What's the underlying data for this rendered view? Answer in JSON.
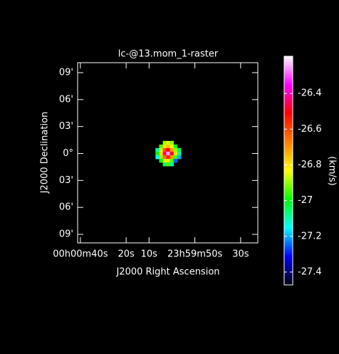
{
  "chart_data": {
    "type": "heatmap",
    "title": "lc-@13.mom_1-raster",
    "x_label": "J2000 Right Ascension",
    "y_label": "J2000 Declination",
    "colorbar_label": "(km/s)",
    "xlim": [
      41.2,
      -37.5
    ],
    "xticks": [
      {
        "value": 40,
        "label": "00h00m40s"
      },
      {
        "value": 20,
        "label": "20s"
      },
      {
        "value": 10,
        "label": "10s"
      },
      {
        "value": -10,
        "label": "23h59m50s"
      },
      {
        "value": -30,
        "label": "30s"
      }
    ],
    "ylim": [
      -9.95,
      10.11
    ],
    "yticks": [
      {
        "value": 9,
        "label": "09'"
      },
      {
        "value": 6,
        "label": "06'"
      },
      {
        "value": 3,
        "label": "03'"
      },
      {
        "value": 0,
        "label": "0°"
      },
      {
        "value": -3,
        "label": "03'"
      },
      {
        "value": -6,
        "label": "06'"
      },
      {
        "value": -9,
        "label": "09'"
      }
    ],
    "x": [
      6.4,
      4.8,
      3.2,
      1.7,
      0.1,
      -1.5,
      -3.1
    ],
    "y": [
      1.2,
      0.8,
      0.4,
      0,
      -0.4,
      -0.8,
      -1.2
    ],
    "z": [
      [
        null,
        null,
        -26.9,
        -26.85,
        -26.9,
        null,
        null
      ],
      [
        null,
        -26.95,
        -26.8,
        -26.75,
        -26.85,
        -27.0,
        null
      ],
      [
        -27.1,
        -26.85,
        -26.6,
        -26.5,
        -26.7,
        -26.9,
        -27.05
      ],
      [
        -27.0,
        -26.8,
        -26.45,
        -26.25,
        -26.5,
        -26.8,
        -27.1
      ],
      [
        -27.15,
        -26.9,
        -26.65,
        -26.55,
        -26.7,
        -26.95,
        -27.2
      ],
      [
        null,
        -27.0,
        -26.85,
        -26.8,
        -26.95,
        -27.25,
        null
      ],
      [
        null,
        null,
        -27.05,
        -26.95,
        -27.1,
        null,
        null
      ]
    ],
    "clim": [
      -27.472,
      -26.192
    ],
    "colorbar_ticks": [
      -26.4,
      -26.6,
      -26.8,
      -27,
      -27.2,
      -27.4
    ],
    "colorscale": [
      "#000010",
      "#0000ff",
      "#00ffff",
      "#00ff00",
      "#ffff00",
      "#ff8000",
      "#ff0000",
      "#ff00ff",
      "#ffffff"
    ]
  }
}
